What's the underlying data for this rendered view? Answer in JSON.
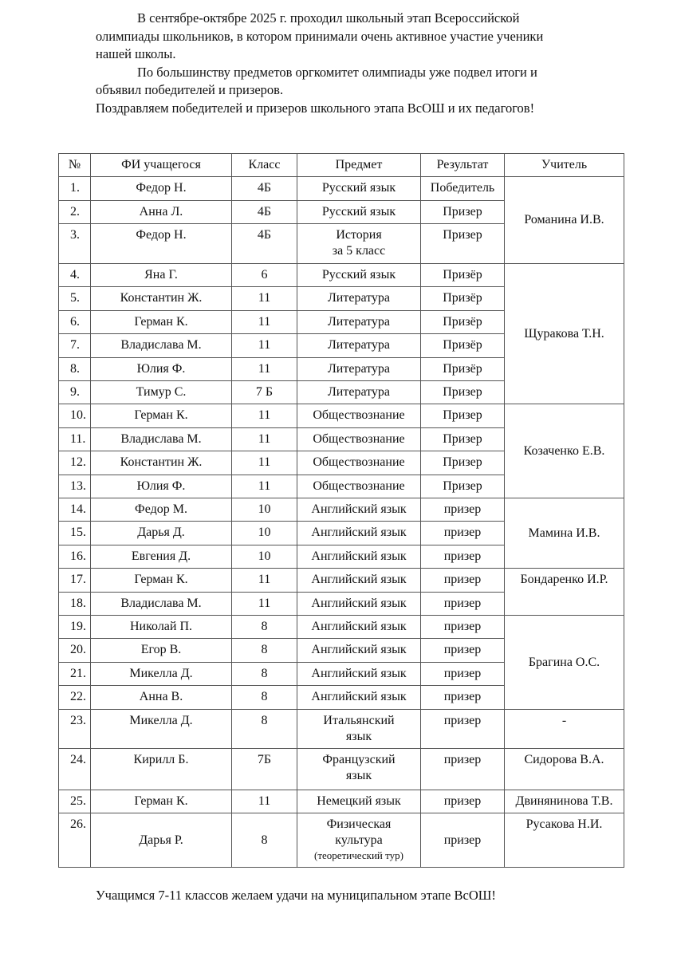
{
  "intro": [
    {
      "text": "В сентябре-октябре 2025 г. проходил школьный этап Всероссийской",
      "indent": true
    },
    {
      "text": "олимпиады школьников, в котором принимали очень активное участие ученики",
      "indent": false
    },
    {
      "text": "нашей школы.",
      "indent": false
    },
    {
      "text": "По большинству предметов оргкомитет олимпиады уже подвел итоги и",
      "indent": true
    },
    {
      "text": "объявил победителей и призеров.",
      "indent": false
    },
    {
      "text": "Поздравляем победителей и призеров школьного этапа ВсОШ и их педагогов!",
      "indent": false
    }
  ],
  "table": {
    "headers": [
      "№",
      "ФИ учащегося",
      "Класс",
      "Предмет",
      "Результат",
      "Учитель"
    ],
    "rows": [
      {
        "num": "1.",
        "name": "Федор Н.",
        "grade": "4Б",
        "subject": "Русский язык",
        "result": "Победитель"
      },
      {
        "num": "2.",
        "name": "Анна Л.",
        "grade": "4Б",
        "subject": "Русский язык",
        "result": "Призер"
      },
      {
        "num": "3.",
        "name": "Федор Н.",
        "grade": "4Б",
        "subject": "История\nза 5 класс",
        "result": "Призер"
      },
      {
        "num": "4.",
        "name": "Яна Г.",
        "grade": "6",
        "subject": "Русский язык",
        "result": "Призёр"
      },
      {
        "num": "5.",
        "name": "Константин Ж.",
        "grade": "11",
        "subject": "Литература",
        "result": "Призёр"
      },
      {
        "num": "6.",
        "name": "Герман К.",
        "grade": "11",
        "subject": "Литература",
        "result": "Призёр"
      },
      {
        "num": "7.",
        "name": "Владислава М.",
        "grade": "11",
        "subject": "Литература",
        "result": "Призёр"
      },
      {
        "num": "8.",
        "name": "Юлия Ф.",
        "grade": "11",
        "subject": "Литература",
        "result": "Призёр"
      },
      {
        "num": "9.",
        "name": "Тимур С.",
        "grade": "7 Б",
        "subject": "Литература",
        "result": "Призер"
      },
      {
        "num": "10.",
        "name": "Герман К.",
        "grade": "11",
        "subject": "Обществознание",
        "result": "Призер"
      },
      {
        "num": "11.",
        "name": "Владислава М.",
        "grade": "11",
        "subject": "Обществознание",
        "result": "Призер"
      },
      {
        "num": "12.",
        "name": "Константин Ж.",
        "grade": "11",
        "subject": "Обществознание",
        "result": "Призер"
      },
      {
        "num": "13.",
        "name": "Юлия Ф.",
        "grade": "11",
        "subject": "Обществознание",
        "result": "Призер"
      },
      {
        "num": "14.",
        "name": "Федор М.",
        "grade": "10",
        "subject": "Английский язык",
        "result": "призер"
      },
      {
        "num": "15.",
        "name": "Дарья Д.",
        "grade": "10",
        "subject": "Английский язык",
        "result": "призер"
      },
      {
        "num": "16.",
        "name": "Евгения Д.",
        "grade": "10",
        "subject": "Английский язык",
        "result": "призер"
      },
      {
        "num": "17.",
        "name": "Герман К.",
        "grade": "11",
        "subject": "Английский язык",
        "result": "призер"
      },
      {
        "num": "18.",
        "name": "Владислава М.",
        "grade": "11",
        "subject": "Английский язык",
        "result": "призер"
      },
      {
        "num": "19.",
        "name": "Николай П.",
        "grade": "8",
        "subject": "Английский язык",
        "result": "призер"
      },
      {
        "num": "20.",
        "name": "Егор В.",
        "grade": "8",
        "subject": "Английский язык",
        "result": "призер"
      },
      {
        "num": "21.",
        "name": "Микелла Д.",
        "grade": "8",
        "subject": "Английский язык",
        "result": "призер"
      },
      {
        "num": "22.",
        "name": "Анна В.",
        "grade": "8",
        "subject": "Английский язык",
        "result": "призер"
      },
      {
        "num": "23.",
        "name": "Микелла Д.",
        "grade": "8",
        "subject": "Итальянский\nязык",
        "result": "призер"
      },
      {
        "num": "24.",
        "name": "Кирилл Б.",
        "grade": "7Б",
        "subject": "Французский\nязык",
        "result": "призер"
      },
      {
        "num": "25.",
        "name": "Герман К.",
        "grade": "11",
        "subject": "Немецкий язык",
        "result": "призер"
      },
      {
        "num": "26.",
        "name": "Дарья Р.",
        "grade": "8",
        "subject": "Физическая\nкультура",
        "subject_note": "(теоретический тур)",
        "result": "призер"
      }
    ],
    "teachers": [
      {
        "name": "Романина И.В.",
        "rows": 3
      },
      {
        "name": "Щуракова Т.Н.",
        "rows": 6
      },
      {
        "name": "Козаченко Е.В.",
        "rows": 4
      },
      {
        "name": "Мамина И.В.",
        "rows": 3
      },
      {
        "name": "Бондаренко И.Р.",
        "rows": 2
      },
      {
        "name": "Брагина О.С.",
        "rows": 4
      },
      {
        "name": "-",
        "rows": 1
      },
      {
        "name": "Сидорова В.А.",
        "rows": 1
      },
      {
        "name": "Двинянинова Т.В.",
        "rows": 1
      },
      {
        "name": "Русакова Н.И.",
        "rows": 1
      }
    ]
  },
  "footer": "Учащимся 7-11 классов желаем удачи на муниципальном этапе ВсОШ!"
}
